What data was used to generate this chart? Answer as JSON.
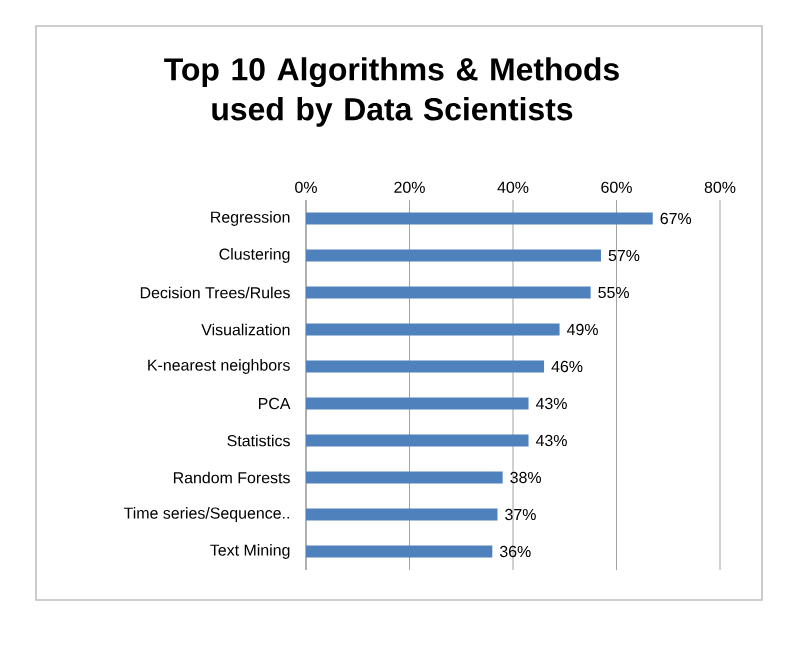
{
  "chart_data": {
    "type": "bar",
    "orientation": "horizontal",
    "title": "Top 10 Algorithms & Methods used by Data Scientists",
    "categories": [
      "Regression",
      "Clustering",
      "Decision Trees/Rules",
      "Visualization",
      "K-nearest neighbors",
      "PCA",
      "Statistics",
      "Random Forests",
      "Time series/Sequence..",
      "Text Mining"
    ],
    "values": [
      67,
      57,
      55,
      49,
      46,
      43,
      43,
      38,
      37,
      36
    ],
    "value_labels": [
      "67%",
      "57%",
      "55%",
      "49%",
      "46%",
      "43%",
      "43%",
      "38%",
      "37%",
      "36%"
    ],
    "color": "#4f81bd",
    "xlim": [
      0,
      80
    ],
    "xticks": [
      {
        "value": 0,
        "label": "0%"
      },
      {
        "value": 20,
        "label": "20%"
      },
      {
        "value": 40,
        "label": "40%"
      },
      {
        "value": 60,
        "label": "60%"
      },
      {
        "value": 80,
        "label": "80%"
      }
    ],
    "grid": "x"
  }
}
